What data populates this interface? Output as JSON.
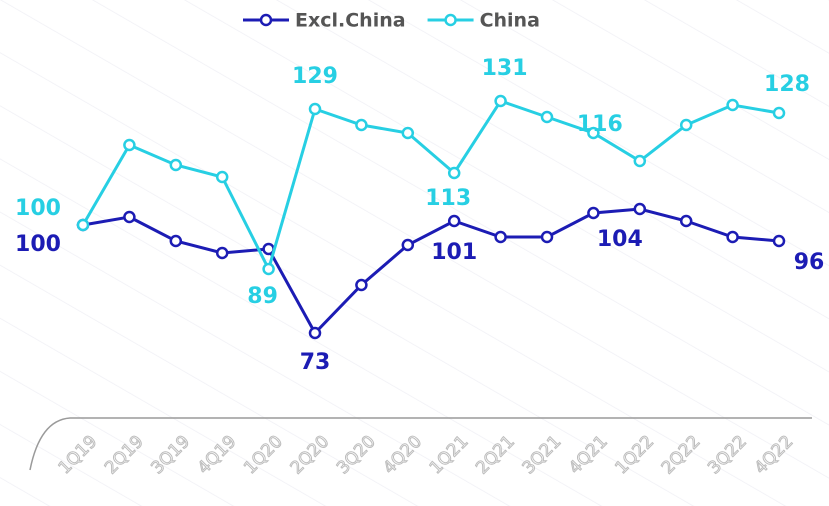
{
  "chart_data": {
    "type": "line",
    "categories": [
      "1Q19",
      "2Q19",
      "3Q19",
      "4Q19",
      "1Q20",
      "2Q20",
      "3Q20",
      "4Q20",
      "1Q21",
      "2Q21",
      "3Q21",
      "4Q21",
      "1Q22",
      "2Q22",
      "3Q22",
      "4Q22"
    ],
    "series": [
      {
        "name": "Excl.China",
        "color": "#1c1cb4",
        "values": [
          100,
          102,
          96,
          93,
          94,
          73,
          85,
          95,
          101,
          97,
          97,
          103,
          104,
          101,
          97,
          96
        ],
        "value_labels": [
          "100",
          null,
          null,
          null,
          null,
          "73",
          null,
          null,
          "101",
          null,
          null,
          null,
          "104",
          null,
          null,
          "96"
        ]
      },
      {
        "name": "China",
        "color": "#27cfe3",
        "values": [
          100,
          120,
          115,
          112,
          89,
          129,
          125,
          123,
          113,
          131,
          127,
          123,
          116,
          125,
          130,
          128
        ],
        "value_labels": [
          "100",
          null,
          null,
          null,
          "89",
          "129",
          null,
          null,
          "113",
          "131",
          null,
          null,
          "116",
          null,
          null,
          "128"
        ]
      }
    ]
  }
}
